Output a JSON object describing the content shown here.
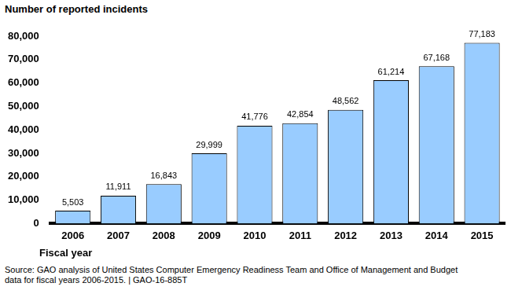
{
  "chart_data": {
    "type": "bar",
    "y_label": "Number of reported incidents",
    "x_label": "Fiscal year",
    "annotations": [
      "Source: GAO analysis of United States Computer Emergency Readiness Team and Office of Management and Budget data for fiscal years 2006-2015. | GAO-16-885T"
    ],
    "categories": [
      "2006",
      "2007",
      "2008",
      "2009",
      "2010",
      "2011",
      "2012",
      "2013",
      "2014",
      "2015"
    ],
    "values": [
      5503,
      11911,
      16843,
      29999,
      41776,
      42854,
      48562,
      61214,
      67168,
      77183
    ],
    "value_labels": [
      "5,503",
      "11,911",
      "16,843",
      "29,999",
      "41,776",
      "42,854",
      "48,562",
      "61,214",
      "67,168",
      "77,183"
    ],
    "data_labels": true,
    "color": "#99ccff",
    "ylim": [
      0,
      80000
    ],
    "yticks": [
      0,
      {
        "value": 10000,
        "label": "10,000"
      },
      {
        "value": 20000,
        "label": "20,000"
      },
      {
        "value": 30000,
        "label": "30,000"
      },
      {
        "value": 40000,
        "label": "40,000"
      },
      {
        "value": 50000,
        "label": "50,000"
      },
      {
        "value": 60000,
        "label": "60,000"
      },
      {
        "value": 70000,
        "label": "70,000"
      },
      {
        "value": 80000,
        "label": "80,000"
      }
    ],
    "grid": false
  }
}
